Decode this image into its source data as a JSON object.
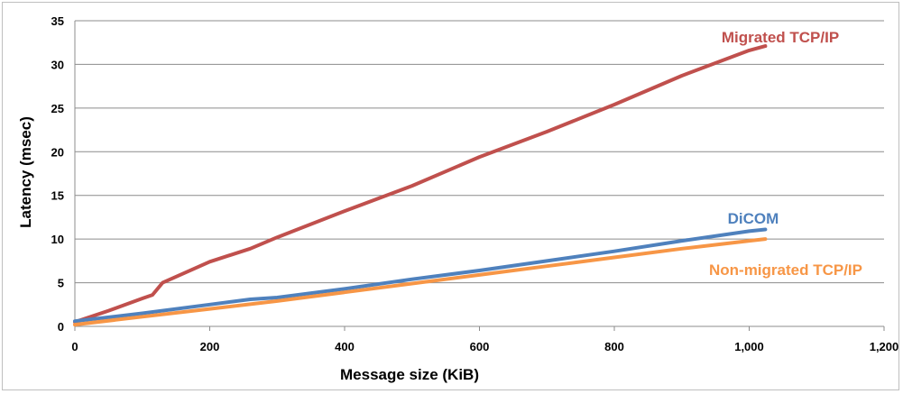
{
  "chart_data": {
    "type": "line",
    "title": "",
    "xlabel": "Message size (KiB)",
    "ylabel": "Latency (msec)",
    "xlim": [
      0,
      1200
    ],
    "ylim": [
      0,
      35
    ],
    "x_ticks": [
      0,
      200,
      400,
      600,
      800,
      1000,
      1200
    ],
    "x_tick_labels": [
      "0",
      "200",
      "400",
      "600",
      "800",
      "1,000",
      "1,200"
    ],
    "y_ticks": [
      0,
      5,
      10,
      15,
      20,
      25,
      30,
      35
    ],
    "y_tick_labels": [
      "0",
      "5",
      "10",
      "15",
      "20",
      "25",
      "30",
      "35"
    ],
    "grid": "horizontal",
    "legend": "inline labels",
    "series": [
      {
        "name": "Migrated TCP/IP",
        "color": "#c0504d",
        "x": [
          0,
          50,
          100,
          115,
          130,
          200,
          260,
          300,
          400,
          500,
          600,
          700,
          800,
          900,
          1000,
          1024
        ],
        "y": [
          0.5,
          1.8,
          3.2,
          3.6,
          5.0,
          7.4,
          8.9,
          10.2,
          13.2,
          16.1,
          19.4,
          22.3,
          25.4,
          28.7,
          31.6,
          32.1
        ]
      },
      {
        "name": "DiCOM",
        "color": "#4f81bd",
        "x": [
          0,
          100,
          200,
          260,
          300,
          400,
          500,
          600,
          700,
          800,
          900,
          1000,
          1024
        ],
        "y": [
          0.6,
          1.5,
          2.5,
          3.1,
          3.3,
          4.3,
          5.4,
          6.4,
          7.5,
          8.6,
          9.8,
          10.9,
          11.1
        ],
        "label": "DiCOM"
      },
      {
        "name": "Non-migrated TCP/IP",
        "color": "#f79646",
        "x": [
          0,
          100,
          200,
          300,
          400,
          500,
          600,
          700,
          800,
          900,
          1000,
          1024
        ],
        "y": [
          0.2,
          1.1,
          2.0,
          2.9,
          3.9,
          4.9,
          5.9,
          6.9,
          7.9,
          8.9,
          9.8,
          10.0
        ]
      }
    ]
  }
}
